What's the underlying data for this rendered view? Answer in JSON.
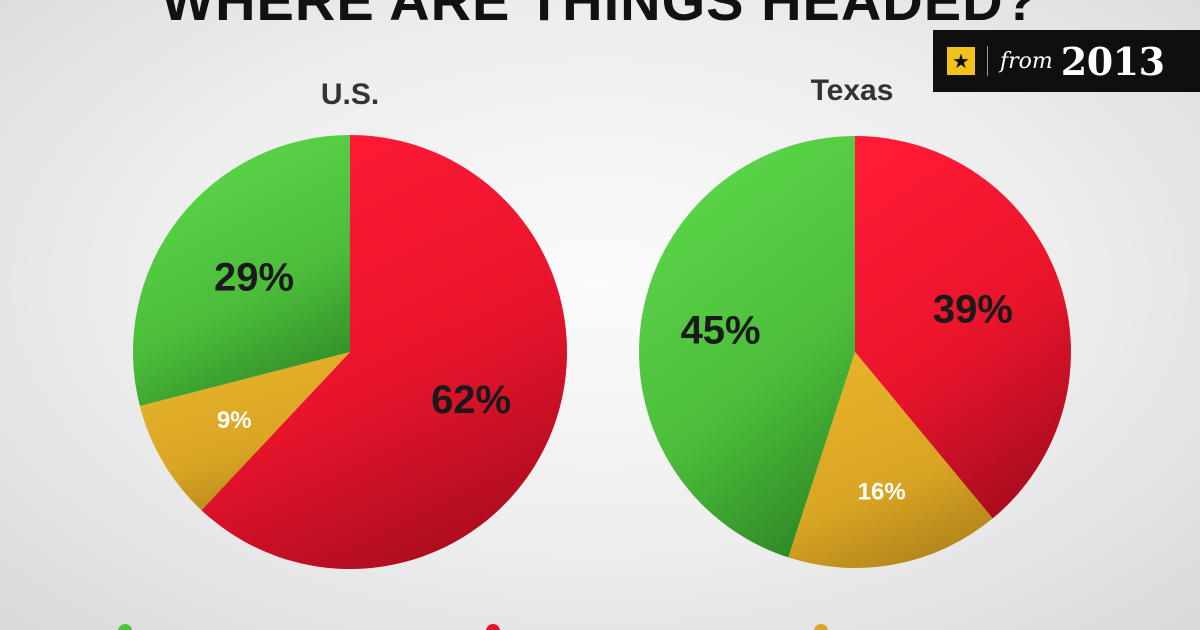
{
  "headline": "WHERE ARE THINGS HEADED?",
  "badge": {
    "icon": "star-icon",
    "from": "from",
    "year": "2013"
  },
  "colors": {
    "green": "#4fc43d",
    "red": "#e8142b",
    "gold": "#d9a524",
    "badge_bg": "#0f0f0f",
    "badge_star": "#f2c21b"
  },
  "chart_data": [
    {
      "type": "pie",
      "title": "U.S.",
      "slices": [
        {
          "value": 62,
          "label": "62%",
          "color": "red"
        },
        {
          "value": 9,
          "label": "9%",
          "color": "gold"
        },
        {
          "value": 29,
          "label": "29%",
          "color": "green"
        }
      ]
    },
    {
      "type": "pie",
      "title": "Texas",
      "slices": [
        {
          "value": 39,
          "label": "39%",
          "color": "red"
        },
        {
          "value": 16,
          "label": "16%",
          "color": "gold"
        },
        {
          "value": 45,
          "label": "45%",
          "color": "green"
        }
      ]
    }
  ]
}
